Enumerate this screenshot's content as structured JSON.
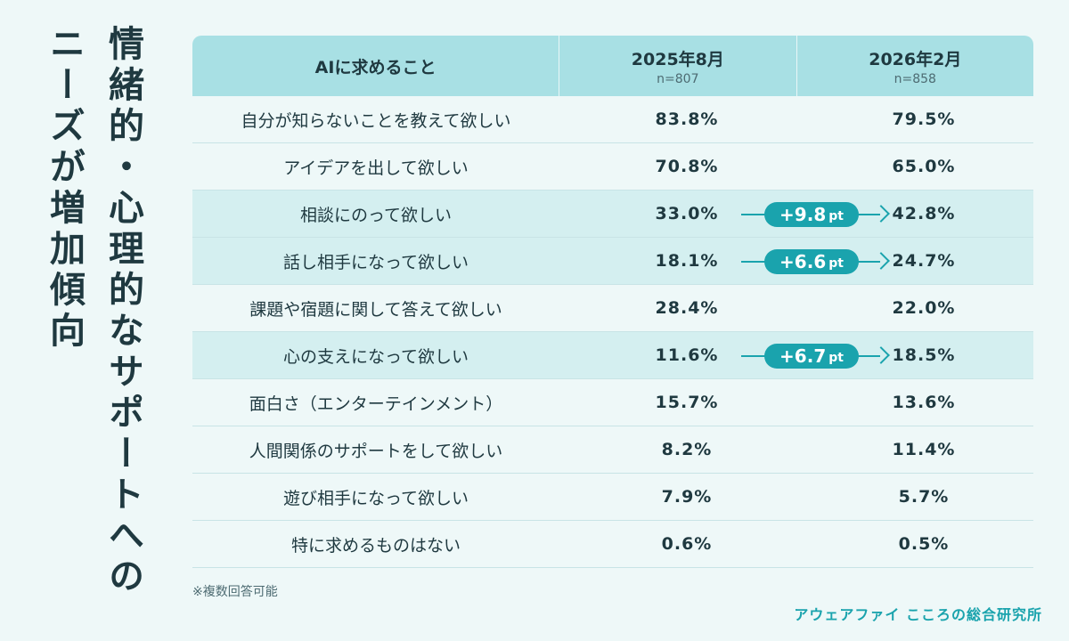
{
  "title_line1": "情緒的・心理的なサポートへの",
  "title_line2": "ニーズが増加傾向",
  "header": {
    "item": "AIに求めること",
    "col1": "2025年8月",
    "col1_n": "n=807",
    "col2": "2026年2月",
    "col2_n": "n=858"
  },
  "chart_data": {
    "type": "table",
    "columns": [
      "AIに求めること",
      "2025年8月",
      "2026年2月"
    ],
    "sample_sizes": [
      "n=807",
      "n=858"
    ],
    "rows": [
      {
        "label": "自分が知らないことを教えて欲しい",
        "v1": "83.8%",
        "v2": "79.5%",
        "diff": null
      },
      {
        "label": "アイデアを出して欲しい",
        "v1": "70.8%",
        "v2": "65.0%",
        "diff": null
      },
      {
        "label": "相談にのって欲しい",
        "v1": "33.0%",
        "v2": "42.8%",
        "diff": "+9.8"
      },
      {
        "label": "話し相手になって欲しい",
        "v1": "18.1%",
        "v2": "24.7%",
        "diff": "+6.6"
      },
      {
        "label": "課題や宿題に関して答えて欲しい",
        "v1": "28.4%",
        "v2": "22.0%",
        "diff": null
      },
      {
        "label": "心の支えになって欲しい",
        "v1": "11.6%",
        "v2": "18.5%",
        "diff": "+6.7"
      },
      {
        "label": "面白さ（エンターテインメント）",
        "v1": "15.7%",
        "v2": "13.6%",
        "diff": null
      },
      {
        "label": "人間関係のサポートをして欲しい",
        "v1": "8.2%",
        "v2": "11.4%",
        "diff": null
      },
      {
        "label": "遊び相手になって欲しい",
        "v1": "7.9%",
        "v2": "5.7%",
        "diff": null
      },
      {
        "label": "特に求めるものはない",
        "v1": "0.6%",
        "v2": "0.5%",
        "diff": null
      }
    ],
    "diff_unit": "pt"
  },
  "note": "※複数回答可能",
  "credit": "アウェアファイ こころの総合研究所",
  "colors": {
    "header_bg": "#a8e0e4",
    "highlight_row": "#d4eff0",
    "accent": "#1aa3ad",
    "text": "#1f3940",
    "background": "#eef8f8"
  }
}
